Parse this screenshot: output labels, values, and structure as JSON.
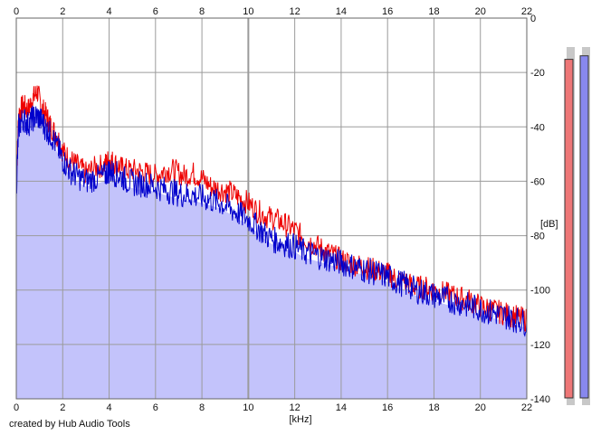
{
  "chart_data": {
    "type": "area",
    "title": "",
    "xlabel": "[kHz]",
    "ylabel": "[dB]",
    "xlim": [
      0,
      22
    ],
    "ylim": [
      -140,
      0
    ],
    "x_ticks": [
      0,
      2,
      4,
      6,
      8,
      10,
      12,
      14,
      16,
      18,
      20,
      22
    ],
    "y_ticks": [
      0,
      -20,
      -40,
      -60,
      -80,
      -100,
      -120,
      -140
    ],
    "grid": true,
    "series": [
      {
        "color": "#ee0000",
        "x": [
          0.0,
          0.1,
          0.3,
          0.5,
          0.7,
          0.9,
          1.1,
          1.3,
          1.5,
          1.8,
          2.0,
          2.3,
          2.6,
          3.0,
          3.4,
          3.8,
          4.0,
          4.2,
          4.5,
          4.8,
          5.2,
          5.6,
          6.0,
          6.4,
          6.8,
          7.2,
          7.6,
          8.0,
          8.4,
          8.8,
          9.2,
          9.6,
          10.0,
          10.4,
          10.8,
          11.2,
          11.6,
          12.0,
          12.4,
          12.8,
          13.2,
          13.6,
          14.0,
          14.4,
          14.8,
          15.2,
          15.6,
          16.0,
          16.4,
          16.8,
          17.2,
          17.6,
          18.0,
          18.4,
          18.8,
          19.2,
          19.6,
          20.0,
          20.4,
          20.8,
          21.2,
          21.6,
          22.0
        ],
        "y": [
          -62,
          -35,
          -32,
          -34,
          -30,
          -27,
          -33,
          -36,
          -40,
          -44,
          -49,
          -52,
          -54,
          -57,
          -55,
          -54,
          -52,
          -53,
          -55,
          -56,
          -56,
          -57,
          -58,
          -56,
          -56,
          -58,
          -57,
          -59,
          -62,
          -63,
          -64,
          -66,
          -68,
          -71,
          -73,
          -74,
          -76,
          -78,
          -81,
          -83,
          -85,
          -87,
          -89,
          -90,
          -91,
          -92,
          -93,
          -94,
          -96,
          -97,
          -99,
          -99,
          -100,
          -101,
          -102,
          -103,
          -104,
          -106,
          -107,
          -108,
          -109,
          -110,
          -111
        ]
      },
      {
        "color": "#0000cc",
        "x": [
          0.0,
          0.1,
          0.3,
          0.5,
          0.7,
          0.9,
          1.1,
          1.3,
          1.5,
          1.8,
          2.0,
          2.3,
          2.6,
          3.0,
          3.4,
          3.8,
          4.0,
          4.2,
          4.5,
          4.8,
          5.2,
          5.6,
          6.0,
          6.4,
          6.8,
          7.2,
          7.6,
          8.0,
          8.4,
          8.8,
          9.2,
          9.6,
          10.0,
          10.4,
          10.8,
          11.2,
          11.6,
          12.0,
          12.4,
          12.8,
          13.2,
          13.6,
          14.0,
          14.4,
          14.8,
          15.2,
          15.6,
          16.0,
          16.4,
          16.8,
          17.2,
          17.6,
          18.0,
          18.4,
          18.8,
          19.2,
          19.6,
          20.0,
          20.4,
          20.8,
          21.2,
          21.6,
          22.0
        ],
        "y": [
          -64,
          -40,
          -37,
          -39,
          -37,
          -36,
          -38,
          -41,
          -43,
          -48,
          -52,
          -56,
          -58,
          -60,
          -59,
          -58,
          -56,
          -57,
          -58,
          -60,
          -61,
          -61,
          -62,
          -63,
          -64,
          -65,
          -65,
          -66,
          -67,
          -68,
          -70,
          -72,
          -74,
          -77,
          -80,
          -82,
          -83,
          -84,
          -86,
          -87,
          -88,
          -89,
          -90,
          -91,
          -92,
          -93,
          -94,
          -95,
          -97,
          -98,
          -100,
          -101,
          -102,
          -103,
          -104,
          -105,
          -106,
          -107,
          -108,
          -109,
          -110,
          -111,
          -112
        ]
      }
    ],
    "level_meters": [
      {
        "color": "#ee7777",
        "level": 0.96
      },
      {
        "color": "#8888ee",
        "level": 0.97
      }
    ],
    "colors": {
      "fill": "#c3c3fb",
      "grid": "#9b9b9b",
      "axis": "#666666"
    }
  },
  "credit": "created by Hub Audio Tools"
}
